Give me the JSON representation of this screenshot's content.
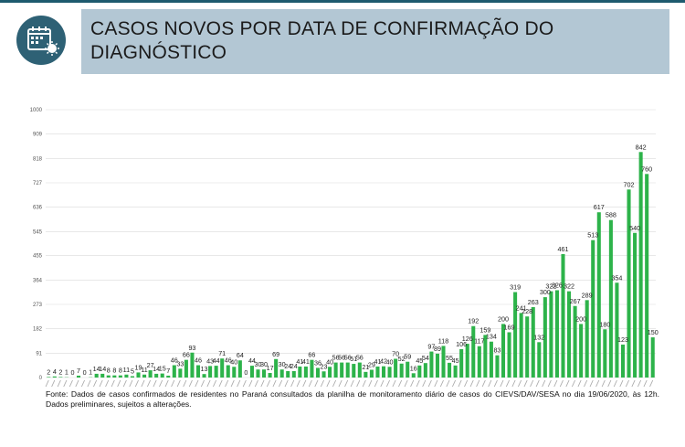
{
  "header": {
    "title": "CASOS NOVOS POR DATA DE CONFIRMAÇÃO DO DIAGNÓSTICO",
    "icon": "calendar-virus-icon"
  },
  "footer": {
    "note": "Fonte: Dados de casos confirmados de residentes no Paraná consultados da planilha de monitoramento diário de casos do CIEVS/DAV/SESA no dia 19/06/2020, às 12h. Dados preliminares, sujeitos a alterações."
  },
  "colors": {
    "bar": "#2db34a",
    "header_bg": "#b3c7d4",
    "icon_bg": "#2e6175",
    "gridline": "#d9d9d9"
  },
  "chart_data": {
    "type": "bar",
    "title": "",
    "xlabel": "",
    "ylabel": "",
    "ylim": [
      0,
      1000
    ],
    "yticks": [
      0,
      91,
      182,
      273,
      364,
      455,
      545,
      636,
      727,
      818,
      909,
      1000
    ],
    "grid": true,
    "x_tick_labels_legible": false,
    "series": [
      {
        "values": [
          2,
          4,
          2,
          1,
          0,
          7,
          0,
          1,
          14,
          14,
          8,
          8,
          8,
          11,
          5,
          19,
          11,
          27,
          14,
          15,
          7,
          46,
          33,
          66,
          93,
          46,
          13,
          43,
          44,
          71,
          46,
          40,
          64,
          0,
          44,
          30,
          30,
          17,
          69,
          30,
          24,
          24,
          41,
          41,
          66,
          36,
          23,
          40,
          56,
          56,
          56,
          51,
          56,
          21,
          29,
          41,
          42,
          40,
          70,
          52,
          59,
          16,
          45,
          54,
          97,
          89,
          118,
          55,
          45,
          106,
          126,
          192,
          117,
          159,
          134,
          83,
          200,
          169,
          319,
          241,
          228,
          263,
          132,
          300,
          322,
          326,
          461,
          322,
          267,
          200,
          289,
          513,
          617,
          180,
          588,
          354,
          123,
          702,
          540,
          842,
          760,
          150
        ]
      }
    ]
  }
}
